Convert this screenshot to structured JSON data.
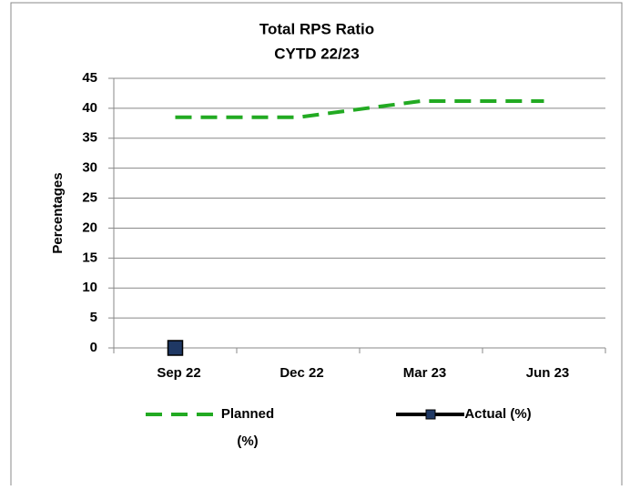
{
  "chart_data": {
    "type": "line",
    "title": "Total RPS Ratio",
    "subtitle": "CYTD 22/23",
    "y_label": "Percentages",
    "categories": [
      "Sep 22",
      "Dec 22",
      "Mar 23",
      "Jun 23"
    ],
    "series": [
      {
        "name": "Planned (%)",
        "color": "#22aa22",
        "values": [
          38.5,
          38.5,
          41.2,
          41.2
        ]
      },
      {
        "name": "Actual (%)",
        "color": "#1f3864",
        "values": [
          0,
          null,
          null,
          null
        ]
      }
    ],
    "ylim": [
      0,
      45
    ],
    "yticks": [
      0,
      5,
      10,
      15,
      20,
      25,
      30,
      35,
      40,
      45
    ],
    "grid": true,
    "legend": "bottom"
  }
}
